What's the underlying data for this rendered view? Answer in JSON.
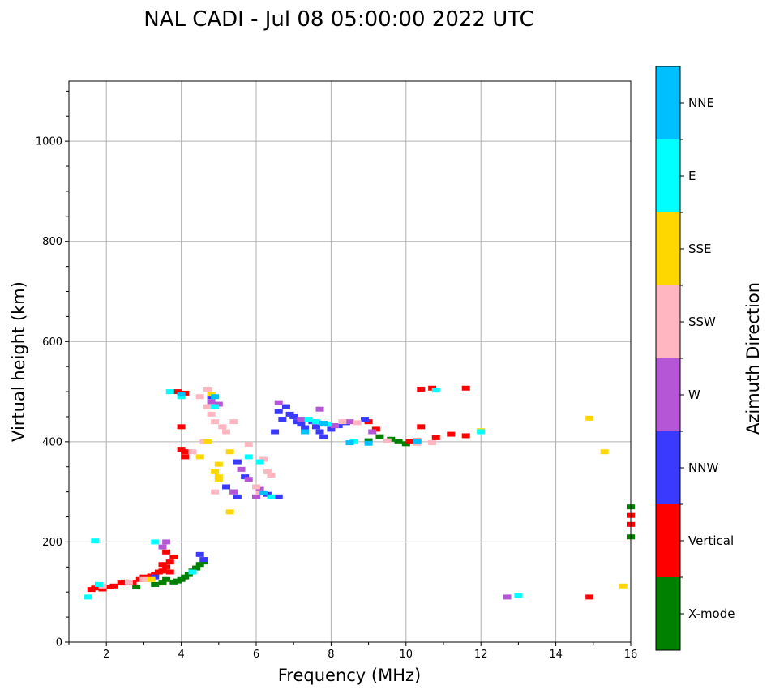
{
  "chart_data": {
    "type": "scatter",
    "title": "NAL CADI - Jul 08 05:00:00 2022 UTC",
    "xlabel": "Frequency (MHz)",
    "ylabel": "Virtual height (km)",
    "xlim": [
      1,
      16
    ],
    "ylim": [
      0,
      1120
    ],
    "xticks": [
      2,
      4,
      6,
      8,
      10,
      12,
      14,
      16
    ],
    "yticks": [
      0,
      200,
      400,
      600,
      800,
      1000
    ],
    "grid": true,
    "colorbar": {
      "title": "Azimuth Direction",
      "categories": [
        "X-mode",
        "Vertical",
        "NNW",
        "W",
        "SSW",
        "SSE",
        "E",
        "NNE"
      ],
      "colors": [
        "#008000",
        "#ff0000",
        "#3a3aff",
        "#b556d6",
        "#ffb6c1",
        "#ffd700",
        "#00ffff",
        "#00bfff"
      ]
    },
    "series": [
      {
        "name": "X-mode",
        "points": [
          [
            3.9,
            122
          ],
          [
            4.0,
            125
          ],
          [
            4.1,
            130
          ],
          [
            4.2,
            135
          ],
          [
            4.3,
            142
          ],
          [
            4.4,
            148
          ],
          [
            4.5,
            155
          ],
          [
            3.8,
            120
          ],
          [
            3.6,
            125
          ],
          [
            3.5,
            118
          ],
          [
            2.8,
            110
          ],
          [
            9.0,
            402
          ],
          [
            9.3,
            410
          ],
          [
            9.6,
            405
          ],
          [
            9.8,
            400
          ],
          [
            10.0,
            396
          ],
          [
            16.0,
            270
          ],
          [
            16.0,
            210
          ],
          [
            4.6,
            160
          ],
          [
            3.3,
            115
          ]
        ]
      },
      {
        "name": "Vertical",
        "points": [
          [
            1.6,
            105
          ],
          [
            1.7,
            108
          ],
          [
            1.9,
            106
          ],
          [
            2.1,
            110
          ],
          [
            2.2,
            112
          ],
          [
            2.4,
            118
          ],
          [
            2.5,
            120
          ],
          [
            2.7,
            118
          ],
          [
            2.9,
            125
          ],
          [
            3.0,
            130
          ],
          [
            3.1,
            128
          ],
          [
            3.2,
            132
          ],
          [
            3.3,
            135
          ],
          [
            3.4,
            140
          ],
          [
            3.5,
            142
          ],
          [
            3.6,
            150
          ],
          [
            3.7,
            160
          ],
          [
            3.8,
            170
          ],
          [
            3.6,
            180
          ],
          [
            3.5,
            155
          ],
          [
            3.7,
            140
          ],
          [
            3.9,
            500
          ],
          [
            4.1,
            497
          ],
          [
            4.0,
            430
          ],
          [
            4.0,
            385
          ],
          [
            4.1,
            380
          ],
          [
            4.1,
            370
          ],
          [
            9.0,
            440
          ],
          [
            9.2,
            425
          ],
          [
            10.3,
            402
          ],
          [
            10.1,
            400
          ],
          [
            10.8,
            408
          ],
          [
            11.2,
            415
          ],
          [
            11.6,
            412
          ],
          [
            10.4,
            430
          ],
          [
            10.4,
            505
          ],
          [
            10.7,
            507
          ],
          [
            11.6,
            507
          ],
          [
            14.9,
            90
          ],
          [
            16.0,
            235
          ],
          [
            16.0,
            253
          ]
        ]
      },
      {
        "name": "NNW",
        "points": [
          [
            4.5,
            175
          ],
          [
            4.6,
            165
          ],
          [
            4.8,
            490
          ],
          [
            5.2,
            310
          ],
          [
            5.4,
            300
          ],
          [
            5.5,
            290
          ],
          [
            5.5,
            360
          ],
          [
            5.7,
            330
          ],
          [
            6.6,
            290
          ],
          [
            6.6,
            460
          ],
          [
            6.8,
            470
          ],
          [
            6.9,
            455
          ],
          [
            7.0,
            450
          ],
          [
            7.1,
            440
          ],
          [
            7.2,
            435
          ],
          [
            7.3,
            428
          ],
          [
            7.5,
            440
          ],
          [
            7.6,
            430
          ],
          [
            7.7,
            420
          ],
          [
            7.8,
            410
          ],
          [
            8.0,
            425
          ],
          [
            8.2,
            432
          ],
          [
            8.4,
            438
          ],
          [
            6.7,
            445
          ],
          [
            6.5,
            420
          ],
          [
            8.9,
            445
          ],
          [
            6.3,
            295
          ],
          [
            3.3,
            130
          ]
        ]
      },
      {
        "name": "W",
        "points": [
          [
            4.8,
            480
          ],
          [
            5.0,
            475
          ],
          [
            5.4,
            300
          ],
          [
            5.6,
            345
          ],
          [
            5.8,
            325
          ],
          [
            6.0,
            290
          ],
          [
            6.1,
            305
          ],
          [
            6.6,
            478
          ],
          [
            7.2,
            445
          ],
          [
            7.7,
            465
          ],
          [
            8.1,
            432
          ],
          [
            8.5,
            440
          ],
          [
            9.1,
            420
          ],
          [
            12.7,
            90
          ],
          [
            3.6,
            200
          ],
          [
            3.5,
            190
          ]
        ]
      },
      {
        "name": "SSW",
        "points": [
          [
            4.5,
            490
          ],
          [
            4.7,
            470
          ],
          [
            4.8,
            455
          ],
          [
            4.9,
            440
          ],
          [
            5.1,
            430
          ],
          [
            5.2,
            420
          ],
          [
            4.3,
            380
          ],
          [
            4.6,
            400
          ],
          [
            5.4,
            440
          ],
          [
            5.8,
            395
          ],
          [
            6.0,
            310
          ],
          [
            6.1,
            298
          ],
          [
            6.2,
            365
          ],
          [
            6.3,
            340
          ],
          [
            6.4,
            333
          ],
          [
            4.7,
            505
          ],
          [
            3.0,
            125
          ],
          [
            2.6,
            120
          ],
          [
            1.9,
            112
          ],
          [
            8.3,
            440
          ],
          [
            8.7,
            438
          ],
          [
            9.5,
            402
          ],
          [
            10.3,
            397
          ],
          [
            10.7,
            398
          ],
          [
            4.9,
            300
          ]
        ]
      },
      {
        "name": "SSE",
        "points": [
          [
            4.7,
            400
          ],
          [
            4.9,
            340
          ],
          [
            5.0,
            355
          ],
          [
            5.0,
            330
          ],
          [
            5.3,
            260
          ],
          [
            5.0,
            325
          ],
          [
            4.8,
            495
          ],
          [
            5.3,
            380
          ],
          [
            12.0,
            422
          ],
          [
            14.9,
            447
          ],
          [
            15.3,
            380
          ],
          [
            15.8,
            112
          ],
          [
            4.5,
            370
          ],
          [
            3.2,
            125
          ]
        ]
      },
      {
        "name": "E",
        "points": [
          [
            1.7,
            202
          ],
          [
            1.5,
            90
          ],
          [
            1.8,
            115
          ],
          [
            4.3,
            140
          ],
          [
            4.9,
            470
          ],
          [
            5.8,
            370
          ],
          [
            6.1,
            360
          ],
          [
            7.4,
            445
          ],
          [
            7.6,
            440
          ],
          [
            7.9,
            435
          ],
          [
            8.6,
            400
          ],
          [
            10.8,
            503
          ],
          [
            12.0,
            420
          ],
          [
            13.0,
            93
          ],
          [
            3.7,
            500
          ],
          [
            3.3,
            200
          ],
          [
            4.0,
            490
          ],
          [
            6.4,
            290
          ]
        ]
      },
      {
        "name": "NNE",
        "points": [
          [
            4.0,
            495
          ],
          [
            4.9,
            490
          ],
          [
            7.3,
            420
          ],
          [
            8.5,
            398
          ],
          [
            9.0,
            397
          ],
          [
            10.3,
            400
          ],
          [
            7.8,
            437
          ],
          [
            6.2,
            298
          ]
        ]
      }
    ]
  }
}
